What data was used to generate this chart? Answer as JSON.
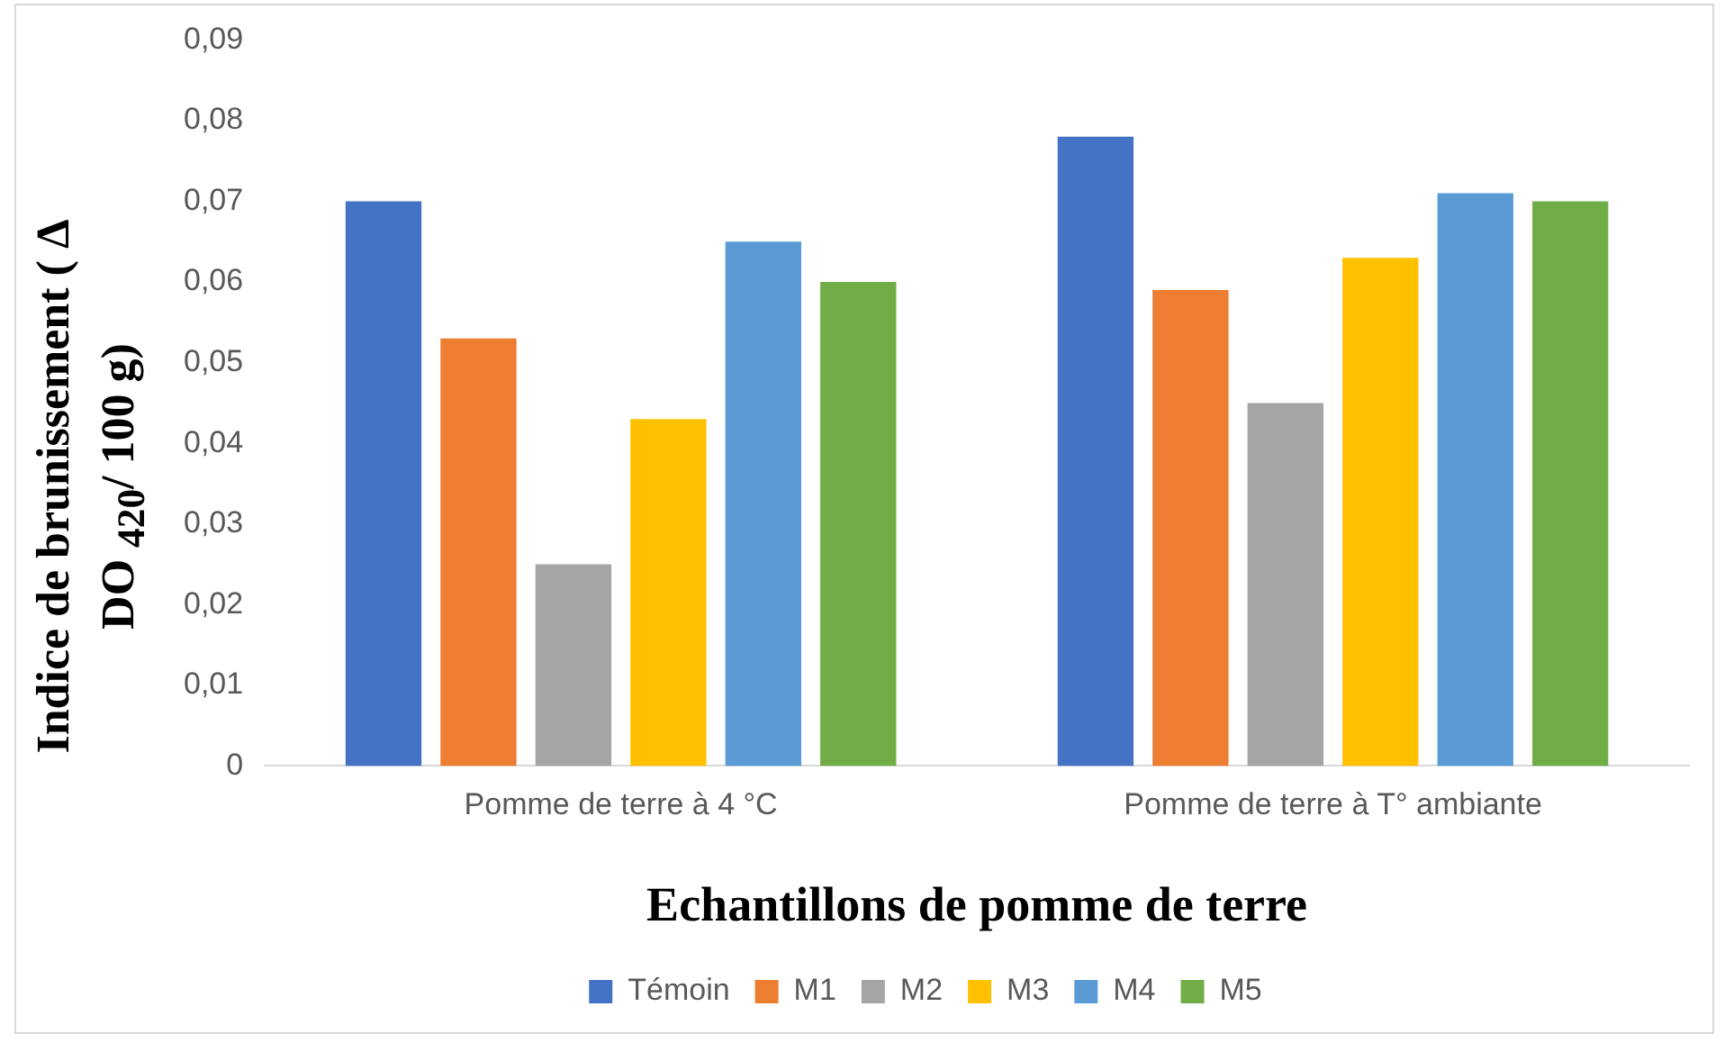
{
  "chart_data": {
    "type": "bar",
    "xlabel": "Echantillons de pomme de terre",
    "ylabel": "Indice de brunissement ( Δ DO $_{420}$/ 100 g)",
    "categories": [
      "Pomme de terre à 4 °C",
      "Pomme de terre à T° ambiante"
    ],
    "series": [
      {
        "name": "Témoin",
        "color": "#4472c4",
        "values": [
          0.07,
          0.078
        ]
      },
      {
        "name": "M1",
        "color": "#ed7d31",
        "values": [
          0.053,
          0.059
        ]
      },
      {
        "name": "M2",
        "color": "#a5a5a5",
        "values": [
          0.025,
          0.045
        ]
      },
      {
        "name": "M3",
        "color": "#ffc000",
        "values": [
          0.043,
          0.063
        ]
      },
      {
        "name": "M4",
        "color": "#5b9bd5",
        "values": [
          0.065,
          0.071
        ]
      },
      {
        "name": "M5",
        "color": "#70ad47",
        "values": [
          0.06,
          0.07
        ]
      }
    ],
    "ylim": [
      0,
      0.09
    ],
    "yticks": [
      {
        "value": 0,
        "label": "0"
      },
      {
        "value": 0.01,
        "label": "0,01"
      },
      {
        "value": 0.02,
        "label": "0,02"
      },
      {
        "value": 0.03,
        "label": "0,03"
      },
      {
        "value": 0.04,
        "label": "0,04"
      },
      {
        "value": 0.05,
        "label": "0,05"
      },
      {
        "value": 0.06,
        "label": "0,06"
      },
      {
        "value": 0.07,
        "label": "0,07"
      },
      {
        "value": 0.08,
        "label": "0,08"
      },
      {
        "value": 0.09,
        "label": "0,09"
      }
    ],
    "grid": false,
    "legend": "bottom"
  }
}
